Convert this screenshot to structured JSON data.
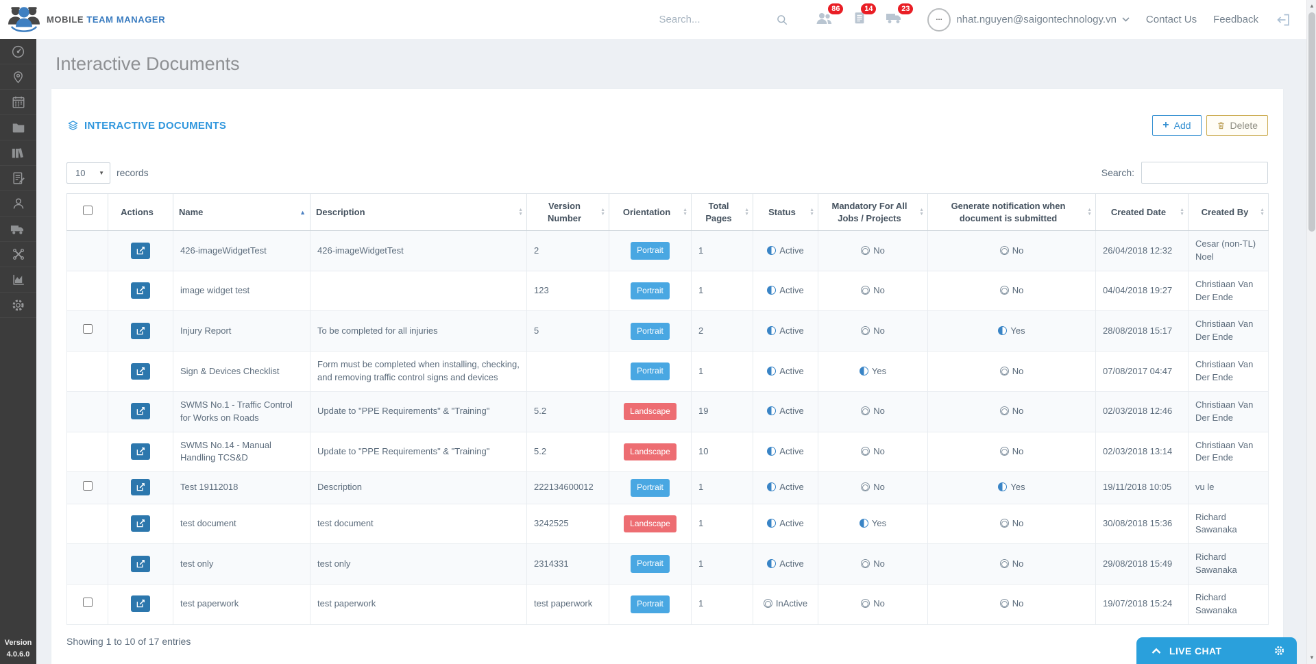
{
  "header": {
    "brand": {
      "word1": "MOBILE",
      "word2": "TEAM MANAGER"
    },
    "search_placeholder": "Search...",
    "notifications": [
      {
        "icon": "people-icon",
        "count": "86"
      },
      {
        "icon": "document-icon",
        "count": "14"
      },
      {
        "icon": "truck-icon",
        "count": "23"
      }
    ],
    "user": {
      "email": "nhat.nguyen@saigontechnology.vn"
    },
    "links": {
      "contact": "Contact Us",
      "feedback": "Feedback"
    }
  },
  "sidebar": {
    "icons": [
      "dashboard",
      "locations",
      "calendar",
      "documents",
      "library",
      "forms",
      "people",
      "fleet",
      "tools",
      "reports",
      "settings"
    ],
    "version_label": "Version",
    "version_number": "4.0.6.0"
  },
  "page": {
    "title": "Interactive Documents"
  },
  "panel": {
    "title": "INTERACTIVE DOCUMENTS",
    "buttons": {
      "add": "Add",
      "delete": "Delete"
    },
    "length_menu": {
      "selected": "10",
      "suffix": "records"
    },
    "search_label": "Search:",
    "footer": "Showing 1 to 10 of 17 entries"
  },
  "table": {
    "columns": [
      {
        "key": "select",
        "label": "",
        "sort": "none",
        "type": "checkbox"
      },
      {
        "key": "actions",
        "label": "Actions",
        "sort": "none"
      },
      {
        "key": "name",
        "label": "Name",
        "sort": "asc",
        "align": "left"
      },
      {
        "key": "description",
        "label": "Description",
        "sort": "both",
        "align": "left"
      },
      {
        "key": "version",
        "label": "Version Number",
        "sort": "both"
      },
      {
        "key": "orientation",
        "label": "Orientation",
        "sort": "both"
      },
      {
        "key": "pages",
        "label": "Total Pages",
        "sort": "both"
      },
      {
        "key": "status",
        "label": "Status",
        "sort": "both"
      },
      {
        "key": "mandatory",
        "label": "Mandatory For All Jobs / Projects",
        "sort": "both"
      },
      {
        "key": "notification",
        "label": "Generate notification when document is submitted",
        "sort": "both"
      },
      {
        "key": "created_date",
        "label": "Created Date",
        "sort": "both"
      },
      {
        "key": "created_by",
        "label": "Created By",
        "sort": "both"
      }
    ],
    "rows": [
      {
        "checkbox": false,
        "name": "426-imageWidgetTest",
        "description": "426-imageWidgetTest",
        "version": "2",
        "orientation": "Portrait",
        "pages": "1",
        "status": "Active",
        "status_on": true,
        "mandatory": "No",
        "mandatory_on": false,
        "notification": "No",
        "notification_on": false,
        "created_date": "26/04/2018 12:32",
        "created_by": "Cesar (non-TL) Noel"
      },
      {
        "checkbox": false,
        "name": "image widget test",
        "description": "",
        "version": "123",
        "orientation": "Portrait",
        "pages": "1",
        "status": "Active",
        "status_on": true,
        "mandatory": "No",
        "mandatory_on": false,
        "notification": "No",
        "notification_on": false,
        "created_date": "04/04/2018 19:27",
        "created_by": "Christiaan Van Der Ende"
      },
      {
        "checkbox": true,
        "name": "Injury Report",
        "description": "To be completed for all injuries",
        "version": "5",
        "orientation": "Portrait",
        "pages": "2",
        "status": "Active",
        "status_on": true,
        "mandatory": "No",
        "mandatory_on": false,
        "notification": "Yes",
        "notification_on": true,
        "created_date": "28/08/2018 15:17",
        "created_by": "Christiaan Van Der Ende"
      },
      {
        "checkbox": false,
        "name": "Sign & Devices Checklist",
        "description": "Form must be completed when installing, checking, and removing traffic control signs and devices",
        "version": "",
        "orientation": "Portrait",
        "pages": "1",
        "status": "Active",
        "status_on": true,
        "mandatory": "Yes",
        "mandatory_on": true,
        "notification": "No",
        "notification_on": false,
        "created_date": "07/08/2017 04:47",
        "created_by": "Christiaan Van Der Ende"
      },
      {
        "checkbox": false,
        "name": "SWMS No.1 - Traffic Control for Works on Roads",
        "description": "Update to \"PPE Requirements\" & \"Training\"",
        "version": "5.2",
        "orientation": "Landscape",
        "pages": "19",
        "status": "Active",
        "status_on": true,
        "mandatory": "No",
        "mandatory_on": false,
        "notification": "No",
        "notification_on": false,
        "created_date": "02/03/2018 12:46",
        "created_by": "Christiaan Van Der Ende"
      },
      {
        "checkbox": false,
        "name": "SWMS No.14 - Manual Handling TCS&D",
        "description": "Update to \"PPE Requirements\" & \"Training\"",
        "version": "5.2",
        "orientation": "Landscape",
        "pages": "10",
        "status": "Active",
        "status_on": true,
        "mandatory": "No",
        "mandatory_on": false,
        "notification": "No",
        "notification_on": false,
        "created_date": "02/03/2018 13:14",
        "created_by": "Christiaan Van Der Ende"
      },
      {
        "checkbox": true,
        "name": "Test 19112018",
        "description": "Description",
        "version": "222134600012",
        "orientation": "Portrait",
        "pages": "1",
        "status": "Active",
        "status_on": true,
        "mandatory": "No",
        "mandatory_on": false,
        "notification": "Yes",
        "notification_on": true,
        "created_date": "19/11/2018 10:05",
        "created_by": "vu le"
      },
      {
        "checkbox": false,
        "name": "test document",
        "description": "test document",
        "version": "3242525",
        "orientation": "Landscape",
        "pages": "1",
        "status": "Active",
        "status_on": true,
        "mandatory": "Yes",
        "mandatory_on": true,
        "notification": "No",
        "notification_on": false,
        "created_date": "30/08/2018 15:36",
        "created_by": "Richard Sawanaka"
      },
      {
        "checkbox": false,
        "name": "test only",
        "description": "test only",
        "version": "2314331",
        "orientation": "Portrait",
        "pages": "1",
        "status": "Active",
        "status_on": true,
        "mandatory": "No",
        "mandatory_on": false,
        "notification": "No",
        "notification_on": false,
        "created_date": "29/08/2018 15:49",
        "created_by": "Richard Sawanaka"
      },
      {
        "checkbox": true,
        "name": "test paperwork",
        "description": "test paperwork",
        "version": "test paperwork",
        "orientation": "Portrait",
        "pages": "1",
        "status": "InActive",
        "status_on": false,
        "mandatory": "No",
        "mandatory_on": false,
        "notification": "No",
        "notification_on": false,
        "created_date": "19/07/2018 15:24",
        "created_by": "Richard Sawanaka"
      }
    ]
  },
  "livechat": {
    "label": "LIVE CHAT"
  },
  "colors": {
    "accent_blue": "#2f96dd",
    "badge_red": "#e91e25",
    "portrait_blue": "#49a7e2",
    "landscape_red": "#ed6d72",
    "edit_blue": "#2c77ad",
    "livechat_blue": "#2aa0dc",
    "delete_gold": "#cbab4e",
    "sidebar_bg": "#3c3c3c"
  }
}
